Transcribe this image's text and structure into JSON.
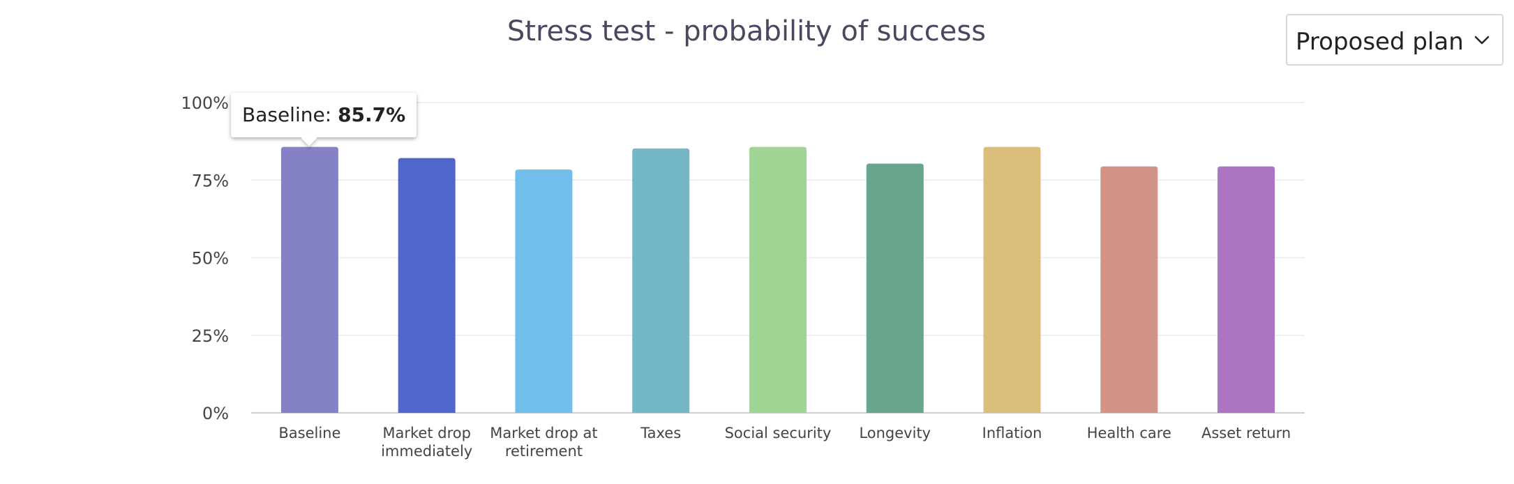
{
  "title": "Stress test - probability of success",
  "dropdown": {
    "selected": "Proposed plan",
    "icon": "chevron-down-icon"
  },
  "tooltip": {
    "label": "Baseline:",
    "value": "85.7%"
  },
  "chart_data": {
    "type": "bar",
    "categories": [
      "Baseline",
      "Market drop immediately",
      "Market drop at retirement",
      "Taxes",
      "Social security",
      "Longevity",
      "Inflation",
      "Health care",
      "Asset return"
    ],
    "category_lines": [
      [
        "Baseline"
      ],
      [
        "Market drop",
        "immediately"
      ],
      [
        "Market drop at",
        "retirement"
      ],
      [
        "Taxes"
      ],
      [
        "Social security"
      ],
      [
        "Longevity"
      ],
      [
        "Inflation"
      ],
      [
        "Health care"
      ],
      [
        "Asset return"
      ]
    ],
    "values": [
      85.7,
      82.1,
      78.4,
      85.2,
      85.7,
      80.3,
      85.7,
      79.4,
      79.4
    ],
    "colors": [
      "#8481c7",
      "#4f66cb",
      "#71bdeb",
      "#74b8c5",
      "#9fd594",
      "#67a58d",
      "#dbbd7c",
      "#d39386",
      "#ad74c2"
    ],
    "yticks": [
      "0%",
      "25%",
      "50%",
      "75%",
      "100%"
    ],
    "ylim": [
      0,
      100
    ],
    "grid": true
  }
}
